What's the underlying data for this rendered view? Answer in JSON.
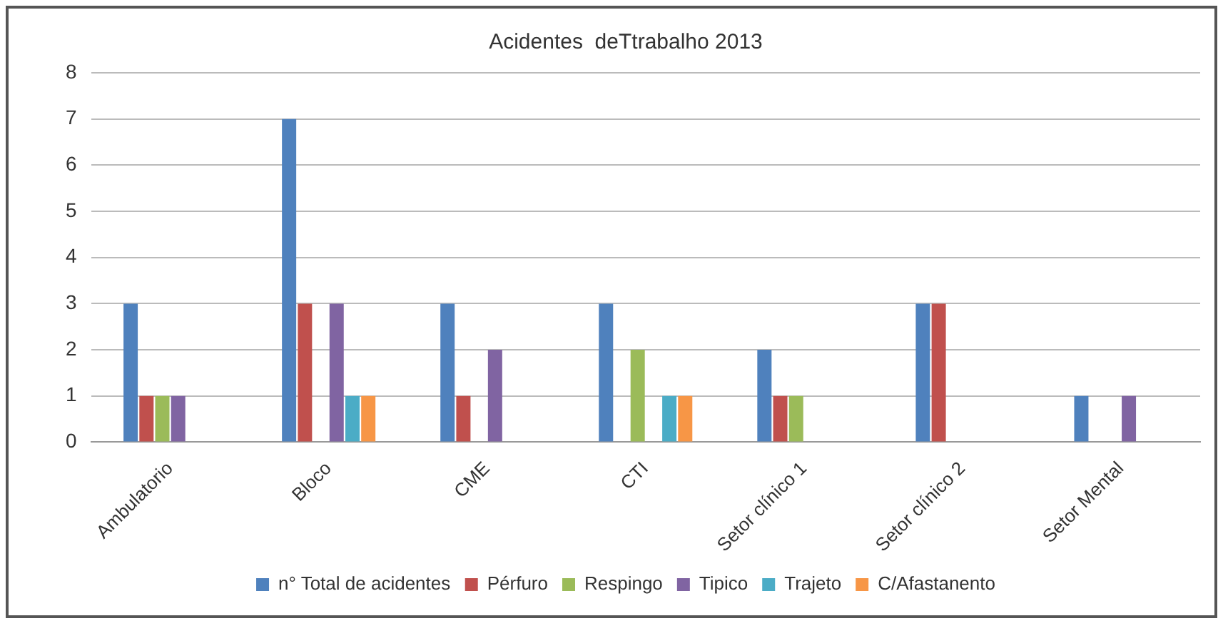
{
  "chart_data": {
    "type": "bar",
    "title": "Acidentes  deTtrabalho 2013",
    "categories": [
      "Ambulatorio",
      "Bloco",
      "CME",
      "CTI",
      "Setor clínico 1",
      "Setor clínico 2",
      "Setor Mental"
    ],
    "series": [
      {
        "name": "n° Total de acidentes",
        "color": "#4f81bd",
        "values": [
          3,
          7,
          3,
          3,
          2,
          3,
          1
        ]
      },
      {
        "name": "Pérfuro",
        "color": "#c0504d",
        "values": [
          1,
          3,
          1,
          0,
          1,
          3,
          0
        ]
      },
      {
        "name": "Respingo",
        "color": "#9bbb59",
        "values": [
          1,
          0,
          0,
          2,
          1,
          0,
          0
        ]
      },
      {
        "name": "Tipico",
        "color": "#8064a2",
        "values": [
          1,
          3,
          2,
          0,
          0,
          0,
          1
        ]
      },
      {
        "name": "Trajeto",
        "color": "#4bacc6",
        "values": [
          0,
          1,
          0,
          1,
          0,
          0,
          0
        ]
      },
      {
        "name": "C/Afastanento",
        "color": "#f79646",
        "values": [
          0,
          1,
          0,
          1,
          0,
          0,
          0
        ]
      }
    ],
    "ylim": [
      0,
      8
    ],
    "yticks": [
      0,
      1,
      2,
      3,
      4,
      5,
      6,
      7,
      8
    ],
    "grid": "y",
    "legend": "bottom"
  }
}
